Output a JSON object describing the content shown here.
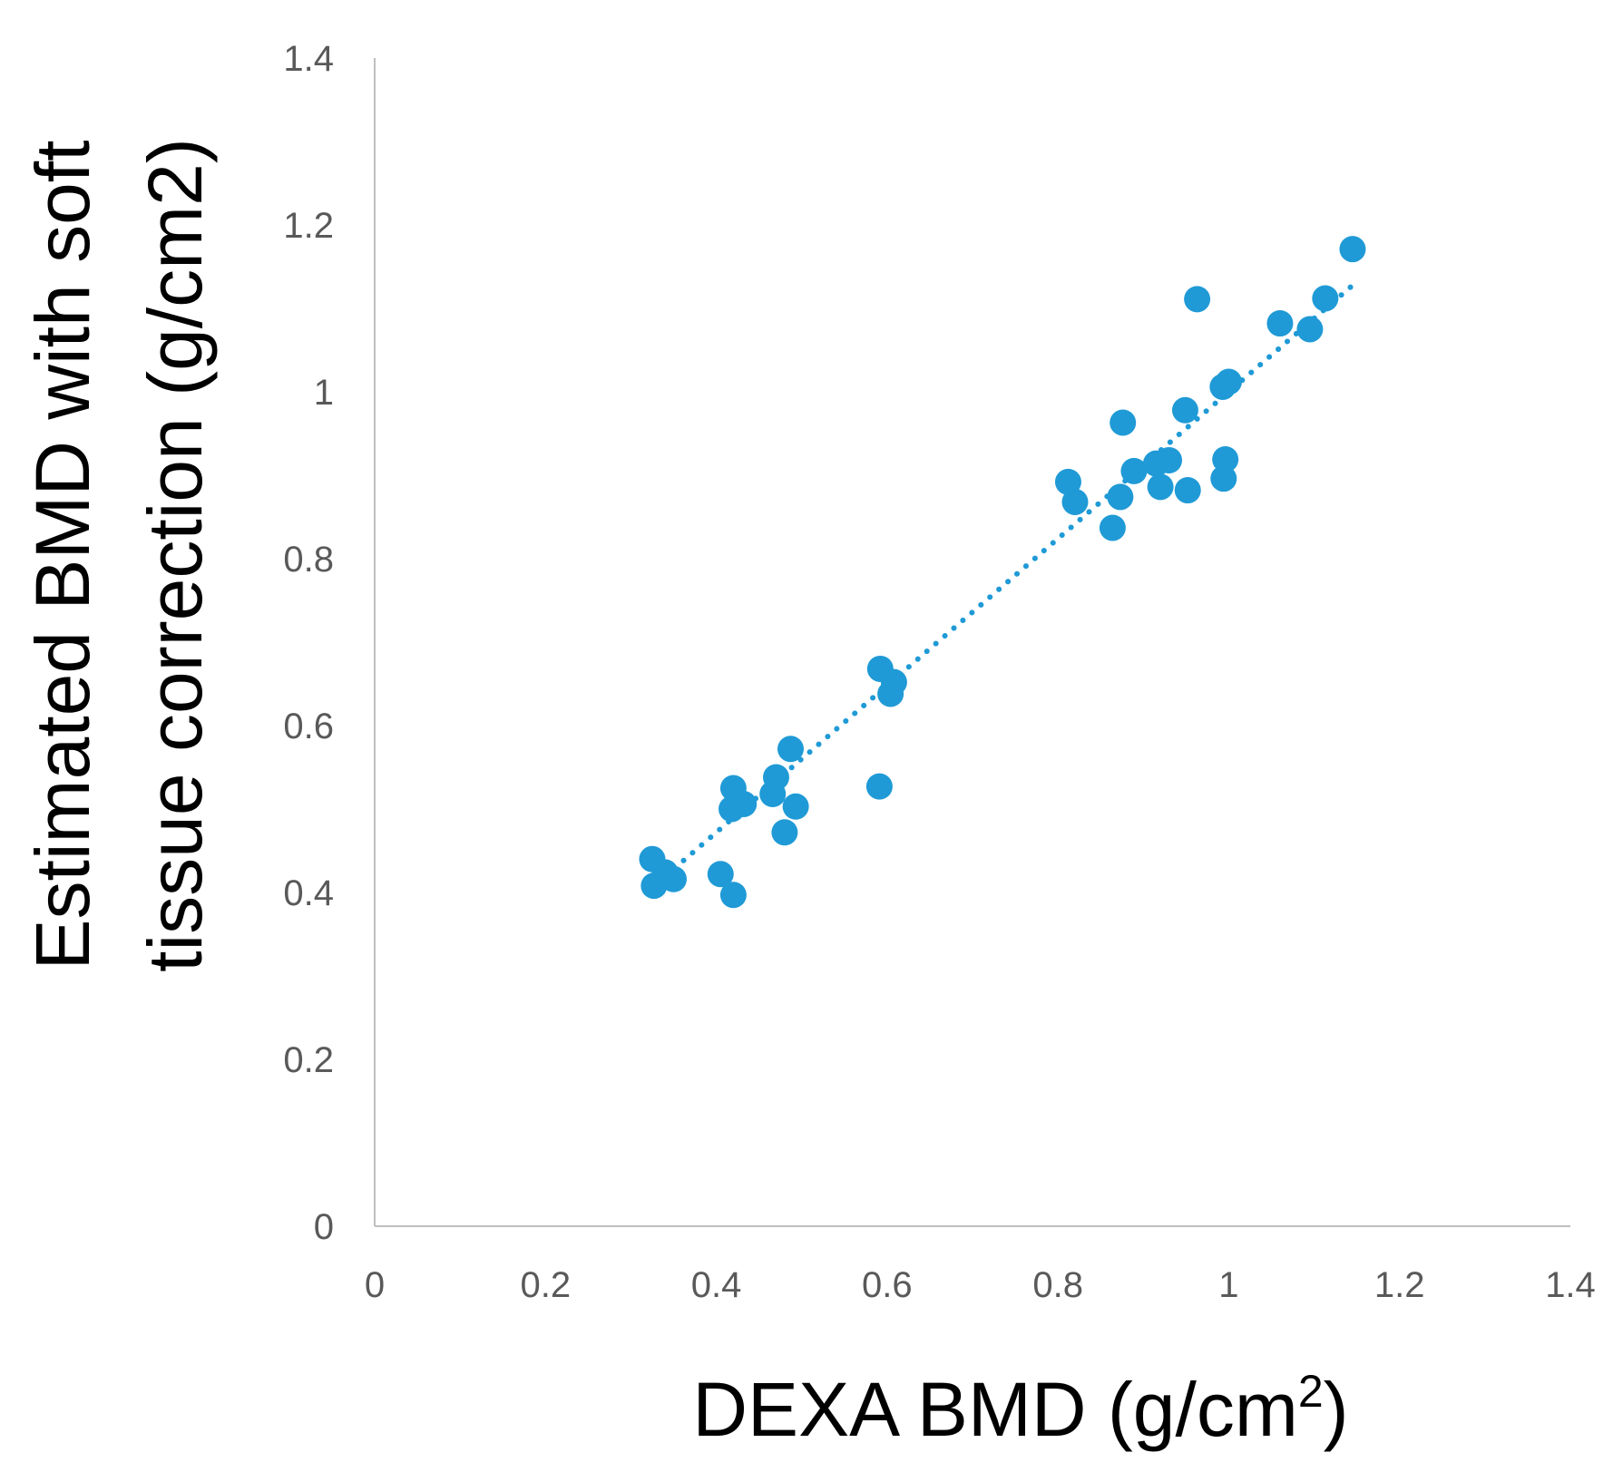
{
  "chart_data": {
    "type": "scatter",
    "title": "",
    "xlabel": "DEXA BMD (g/cm",
    "xlabel_sup": "2",
    "xlabel_close": ")",
    "ylabel_line1": "Estimated BMD with soft",
    "ylabel_line2": "tissue correction (g/cm2)",
    "xlim": [
      0,
      1.4
    ],
    "ylim": [
      0,
      1.4
    ],
    "x_ticks": [
      0,
      0.2,
      0.4,
      0.6,
      0.8,
      1,
      1.2,
      1.4
    ],
    "y_ticks": [
      0,
      0.2,
      0.4,
      0.6,
      0.8,
      1,
      1.2,
      1.4
    ],
    "x_tick_labels": [
      "0",
      "0.2",
      "0.4",
      "0.6",
      "0.8",
      "1",
      "1.2",
      "1.4"
    ],
    "y_tick_labels": [
      "0",
      "0.2",
      "0.4",
      "0.6",
      "0.8",
      "1",
      "1.2",
      "1.4"
    ],
    "grid": false,
    "point_color": "#1f9ad6",
    "trendline": {
      "style": "dotted",
      "color": "#1f9ad6",
      "x_start": 0.33,
      "x_end": 1.15,
      "slope": 0.88,
      "intercept": 0.12
    },
    "points": [
      {
        "x": 0.325,
        "y": 0.44
      },
      {
        "x": 0.327,
        "y": 0.408
      },
      {
        "x": 0.34,
        "y": 0.424
      },
      {
        "x": 0.35,
        "y": 0.416
      },
      {
        "x": 0.405,
        "y": 0.422
      },
      {
        "x": 0.418,
        "y": 0.5
      },
      {
        "x": 0.42,
        "y": 0.397
      },
      {
        "x": 0.42,
        "y": 0.525
      },
      {
        "x": 0.432,
        "y": 0.506
      },
      {
        "x": 0.466,
        "y": 0.518
      },
      {
        "x": 0.47,
        "y": 0.538
      },
      {
        "x": 0.48,
        "y": 0.472
      },
      {
        "x": 0.487,
        "y": 0.572
      },
      {
        "x": 0.493,
        "y": 0.503
      },
      {
        "x": 0.591,
        "y": 0.527
      },
      {
        "x": 0.592,
        "y": 0.668
      },
      {
        "x": 0.604,
        "y": 0.638
      },
      {
        "x": 0.608,
        "y": 0.652
      },
      {
        "x": 0.812,
        "y": 0.892
      },
      {
        "x": 0.82,
        "y": 0.868
      },
      {
        "x": 0.864,
        "y": 0.837
      },
      {
        "x": 0.873,
        "y": 0.874
      },
      {
        "x": 0.876,
        "y": 0.963
      },
      {
        "x": 0.889,
        "y": 0.905
      },
      {
        "x": 0.915,
        "y": 0.914
      },
      {
        "x": 0.92,
        "y": 0.886
      },
      {
        "x": 0.93,
        "y": 0.918
      },
      {
        "x": 0.949,
        "y": 0.978
      },
      {
        "x": 0.952,
        "y": 0.882
      },
      {
        "x": 0.963,
        "y": 1.111
      },
      {
        "x": 0.993,
        "y": 1.006
      },
      {
        "x": 0.994,
        "y": 0.896
      },
      {
        "x": 0.996,
        "y": 0.919
      },
      {
        "x": 1.0,
        "y": 1.012
      },
      {
        "x": 1.06,
        "y": 1.082
      },
      {
        "x": 1.095,
        "y": 1.075
      },
      {
        "x": 1.113,
        "y": 1.112
      },
      {
        "x": 1.145,
        "y": 1.171
      }
    ]
  }
}
